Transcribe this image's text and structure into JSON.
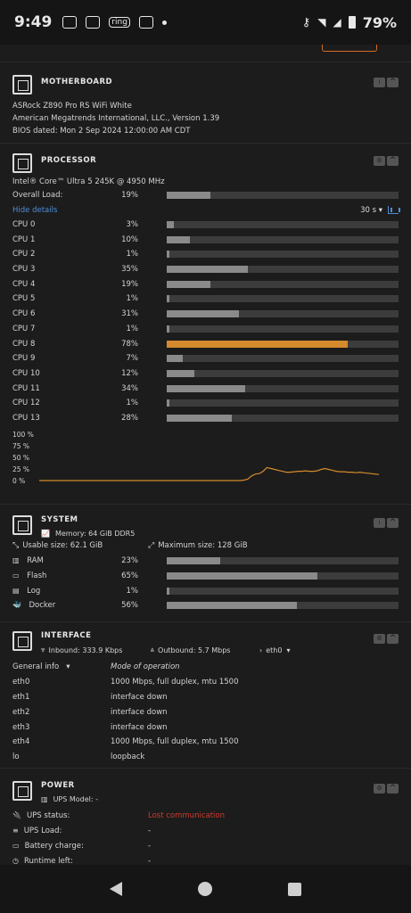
{
  "status": {
    "time": "9:49",
    "battery": "79%",
    "ring": "ring"
  },
  "motherboard": {
    "title": "MOTHERBOARD",
    "lines": [
      "ASRock Z890 Pro RS WiFi White",
      "American Megatrends International, LLC., Version 1.39",
      "BIOS dated: Mon 2 Sep 2024 12:00:00 AM CDT"
    ]
  },
  "processor": {
    "title": "PROCESSOR",
    "model": "Intel® Core™ Ultra 5 245K @ 4950 MHz",
    "overall_label": "Overall Load:",
    "overall_pct": "19%",
    "overall_value": 19,
    "hide_details": "Hide details",
    "interval": "30 s",
    "cpus": [
      {
        "label": "CPU 0",
        "pct": "3%",
        "value": 3
      },
      {
        "label": "CPU 1",
        "pct": "10%",
        "value": 10
      },
      {
        "label": "CPU 2",
        "pct": "1%",
        "value": 1
      },
      {
        "label": "CPU 3",
        "pct": "35%",
        "value": 35
      },
      {
        "label": "CPU 4",
        "pct": "19%",
        "value": 19
      },
      {
        "label": "CPU 5",
        "pct": "1%",
        "value": 1
      },
      {
        "label": "CPU 6",
        "pct": "31%",
        "value": 31
      },
      {
        "label": "CPU 7",
        "pct": "1%",
        "value": 1
      },
      {
        "label": "CPU 8",
        "pct": "78%",
        "value": 78
      },
      {
        "label": "CPU 9",
        "pct": "7%",
        "value": 7
      },
      {
        "label": "CPU 10",
        "pct": "12%",
        "value": 12
      },
      {
        "label": "CPU 11",
        "pct": "34%",
        "value": 34
      },
      {
        "label": "CPU 12",
        "pct": "1%",
        "value": 1
      },
      {
        "label": "CPU 13",
        "pct": "28%",
        "value": 28
      }
    ],
    "chart_data": {
      "type": "line",
      "y_ticks": [
        "100 %",
        "75 %",
        "50 %",
        "25 %",
        "0 %"
      ],
      "ylim": [
        0,
        100
      ],
      "color": "#d48a2c",
      "values": [
        0,
        0,
        0,
        0,
        0,
        0,
        0,
        0,
        0,
        0,
        0,
        0,
        0,
        0,
        0,
        0,
        0,
        0,
        0,
        0,
        0,
        0,
        0,
        0,
        0,
        0,
        0,
        0,
        0,
        0,
        0,
        0,
        0,
        0,
        0,
        0,
        0,
        0,
        0,
        0,
        0,
        0,
        0,
        0,
        0,
        0,
        0,
        0,
        0,
        0,
        0,
        0,
        0,
        1,
        3,
        10,
        14,
        15,
        20,
        28,
        26,
        24,
        22,
        20,
        18,
        18,
        19,
        20,
        20,
        21,
        20,
        20,
        21,
        24,
        26,
        24,
        22,
        20,
        19,
        19,
        18,
        18,
        17,
        18,
        17,
        16,
        15,
        14,
        13
      ]
    }
  },
  "system": {
    "title": "SYSTEM",
    "memory": "Memory: 64 GiB DDR5",
    "usable": "Usable size: 62.1 GiB",
    "maximum": "Maximum size: 128 GiB",
    "bars": [
      {
        "label": "RAM",
        "pct": "23%",
        "value": 23
      },
      {
        "label": "Flash",
        "pct": "65%",
        "value": 65
      },
      {
        "label": "Log",
        "pct": "1%",
        "value": 1
      },
      {
        "label": "Docker",
        "pct": "56%",
        "value": 56
      }
    ]
  },
  "interface": {
    "title": "INTERFACE",
    "inbound": "Inbound: 333.9 Kbps",
    "outbound": "Outbound: 5.7 Mbps",
    "selected": "eth0",
    "general": "General info",
    "mode_header": "Mode of operation",
    "rows": [
      {
        "name": "eth0",
        "mode": "1000 Mbps, full duplex, mtu 1500"
      },
      {
        "name": "eth1",
        "mode": "interface down"
      },
      {
        "name": "eth2",
        "mode": "interface down"
      },
      {
        "name": "eth3",
        "mode": "interface down"
      },
      {
        "name": "eth4",
        "mode": "1000 Mbps, full duplex, mtu 1500"
      },
      {
        "name": "lo",
        "mode": "loopback"
      }
    ]
  },
  "power": {
    "title": "POWER",
    "model": "UPS Model: -",
    "rows": [
      {
        "label": "UPS status:",
        "value": "Lost communication"
      },
      {
        "label": "UPS Load:",
        "value": "-"
      },
      {
        "label": "Battery charge:",
        "value": "-"
      },
      {
        "label": "Runtime left:",
        "value": "-"
      }
    ]
  }
}
